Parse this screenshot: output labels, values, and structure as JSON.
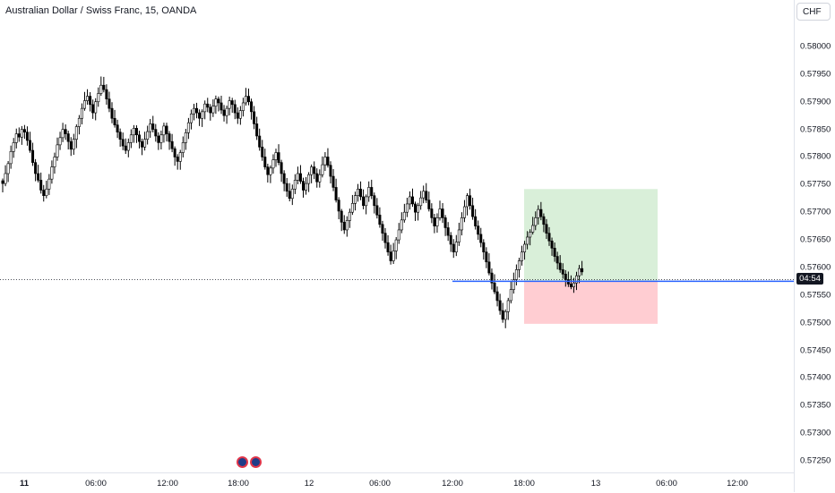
{
  "header": {
    "title": "Australian Dollar / Swiss Franc, 15, OANDA"
  },
  "axis": {
    "currency_label": "CHF",
    "countdown": "04:54",
    "y_ticks": [
      "0.58000",
      "0.57950",
      "0.57900",
      "0.57850",
      "0.57800",
      "0.57750",
      "0.57700",
      "0.57650",
      "0.57600",
      "0.57550",
      "0.57500",
      "0.57450",
      "0.57400",
      "0.57350",
      "0.57300",
      "0.57250"
    ],
    "x_ticks": [
      {
        "label": "11",
        "bold": true
      },
      {
        "label": "06:00",
        "bold": false
      },
      {
        "label": "12:00",
        "bold": false
      },
      {
        "label": "18:00",
        "bold": false
      },
      {
        "label": "12",
        "bold": false
      },
      {
        "label": "06:00",
        "bold": false
      },
      {
        "label": "12:00",
        "bold": false
      },
      {
        "label": "18:00",
        "bold": false
      },
      {
        "label": "13",
        "bold": false
      },
      {
        "label": "06:00",
        "bold": false
      },
      {
        "label": "12:00",
        "bold": false
      }
    ]
  },
  "colors": {
    "up": "#ffffff",
    "down": "#000000",
    "wick": "#000000",
    "entry_line": "#2962ff",
    "profit_zone": "#d9efd9",
    "loss_zone": "#ffcdd2"
  },
  "icons": [
    "au-flag-icon",
    "au-flag-icon"
  ],
  "chart_data": {
    "type": "candlestick",
    "timeframe": "15",
    "x_range_bars": [
      0,
      290
    ],
    "ylim": [
      0.5722,
      0.5804
    ],
    "last_price": 0.57578,
    "position_tool": {
      "entry": 0.57575,
      "target": 0.57742,
      "stop": 0.57498,
      "start_bar": 194,
      "end_bar": 244
    },
    "series_close": [
      0.57752,
      0.5777,
      0.57788,
      0.5781,
      0.57826,
      0.57842,
      0.57836,
      0.5785,
      0.57845,
      0.5783,
      0.57812,
      0.5779,
      0.5777,
      0.57758,
      0.5774,
      0.5773,
      0.57742,
      0.5776,
      0.57782,
      0.578,
      0.57822,
      0.57835,
      0.5785,
      0.57842,
      0.57828,
      0.57814,
      0.57832,
      0.57855,
      0.5787,
      0.57888,
      0.57902,
      0.5791,
      0.57895,
      0.5788,
      0.579,
      0.57915,
      0.5793,
      0.57922,
      0.57905,
      0.57888,
      0.5787,
      0.57858,
      0.57845,
      0.57832,
      0.5782,
      0.57812,
      0.57826,
      0.5784,
      0.57852,
      0.5784,
      0.57828,
      0.57818,
      0.57832,
      0.57846,
      0.5786,
      0.5785,
      0.57838,
      0.57826,
      0.5784,
      0.57856,
      0.57842,
      0.57828,
      0.57815,
      0.578,
      0.57792,
      0.57808,
      0.57826,
      0.57844,
      0.57862,
      0.57878,
      0.57888,
      0.5788,
      0.5787,
      0.57882,
      0.57896,
      0.5789,
      0.5788,
      0.57892,
      0.57905,
      0.57898,
      0.57885,
      0.57875,
      0.57888,
      0.57902,
      0.57895,
      0.5788,
      0.5787,
      0.57884,
      0.57898,
      0.5791,
      0.579,
      0.57882,
      0.5786,
      0.57838,
      0.57818,
      0.578,
      0.57782,
      0.57768,
      0.5778,
      0.57795,
      0.57808,
      0.5779,
      0.5777,
      0.57752,
      0.57738,
      0.57725,
      0.57742,
      0.57758,
      0.5777,
      0.57756,
      0.5774,
      0.57752,
      0.57768,
      0.57782,
      0.5777,
      0.57755,
      0.57768,
      0.57786,
      0.578,
      0.57785,
      0.57765,
      0.57745,
      0.57722,
      0.57702,
      0.57682,
      0.57668,
      0.57685,
      0.577,
      0.57716,
      0.5773,
      0.57742,
      0.57728,
      0.57712,
      0.57728,
      0.57745,
      0.5773,
      0.57712,
      0.57695,
      0.57678,
      0.57662,
      0.57645,
      0.57628,
      0.57612,
      0.5763,
      0.5765,
      0.57668,
      0.57686,
      0.577,
      0.57715,
      0.57728,
      0.57715,
      0.577,
      0.57712,
      0.57726,
      0.57738,
      0.57722,
      0.57706,
      0.5769,
      0.57675,
      0.5769,
      0.57706,
      0.5769,
      0.57672,
      0.57658,
      0.57642,
      0.57628,
      0.57646,
      0.57668,
      0.5769,
      0.5771,
      0.5773,
      0.57712,
      0.57692,
      0.57675,
      0.5766,
      0.57645,
      0.57628,
      0.5761,
      0.5759,
      0.57572,
      0.57556,
      0.5754,
      0.57522,
      0.57506,
      0.5752,
      0.5754,
      0.5756,
      0.57578,
      0.57596,
      0.57612,
      0.57628,
      0.57642,
      0.57655,
      0.57664,
      0.57676,
      0.5769,
      0.57705,
      0.57692,
      0.57678,
      0.57662,
      0.57648,
      0.57635,
      0.5762,
      0.57608,
      0.57596,
      0.57588,
      0.57578,
      0.5757,
      0.57565,
      0.57572,
      0.57585,
      0.57598,
      0.57592
    ]
  }
}
